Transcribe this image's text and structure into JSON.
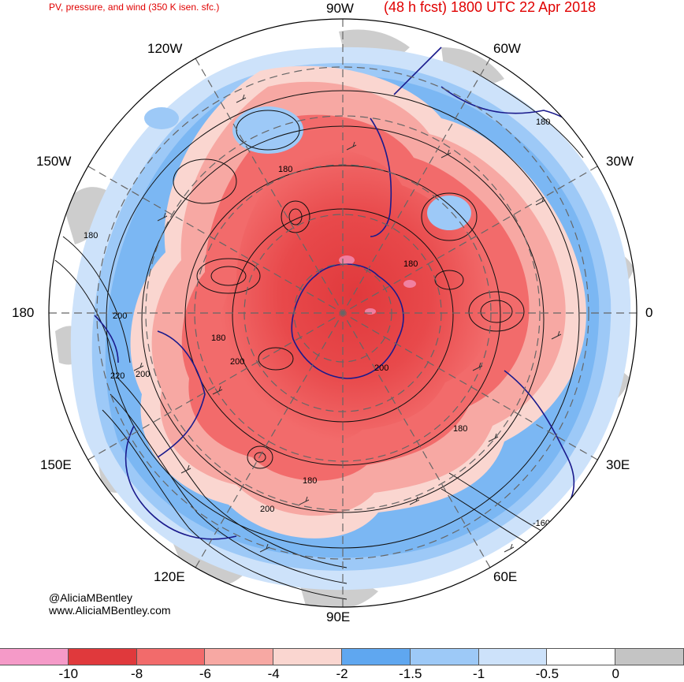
{
  "header": {
    "left_title": "PV, pressure, and wind (350 K isen. sfc.)",
    "right_title": "(48 h fcst) 1800 UTC 22 Apr 2018"
  },
  "longitude_labels": {
    "n90w": "90W",
    "n60w": "60W",
    "n120w": "120W",
    "n30w": "30W",
    "n150w": "150W",
    "n180": "180",
    "n0": "0",
    "n150e": "150E",
    "n30e": "30E",
    "n120e": "120E",
    "n60e": "60E",
    "n90e": "90E"
  },
  "contour_labels": [
    "180",
    "180",
    "180",
    "200",
    "180",
    "200",
    "200",
    "200",
    "180",
    "180",
    "200",
    "-160",
    "220",
    "180"
  ],
  "credits": {
    "handle": "@AliciaMBentley",
    "website": "www.AliciaMBentley.com"
  },
  "colorbar": {
    "colors": [
      "#f59ac8",
      "#e0393c",
      "#f26b6b",
      "#f7a8a3",
      "#fad6d0",
      "#5fa7f0",
      "#9dc9f7",
      "#cde2fa",
      "#ffffff",
      "#c4c4c4"
    ],
    "labels": [
      "-10",
      "-8",
      "-6",
      "-4",
      "-2",
      "-1.5",
      "-1",
      "-0.5",
      "0"
    ]
  }
}
